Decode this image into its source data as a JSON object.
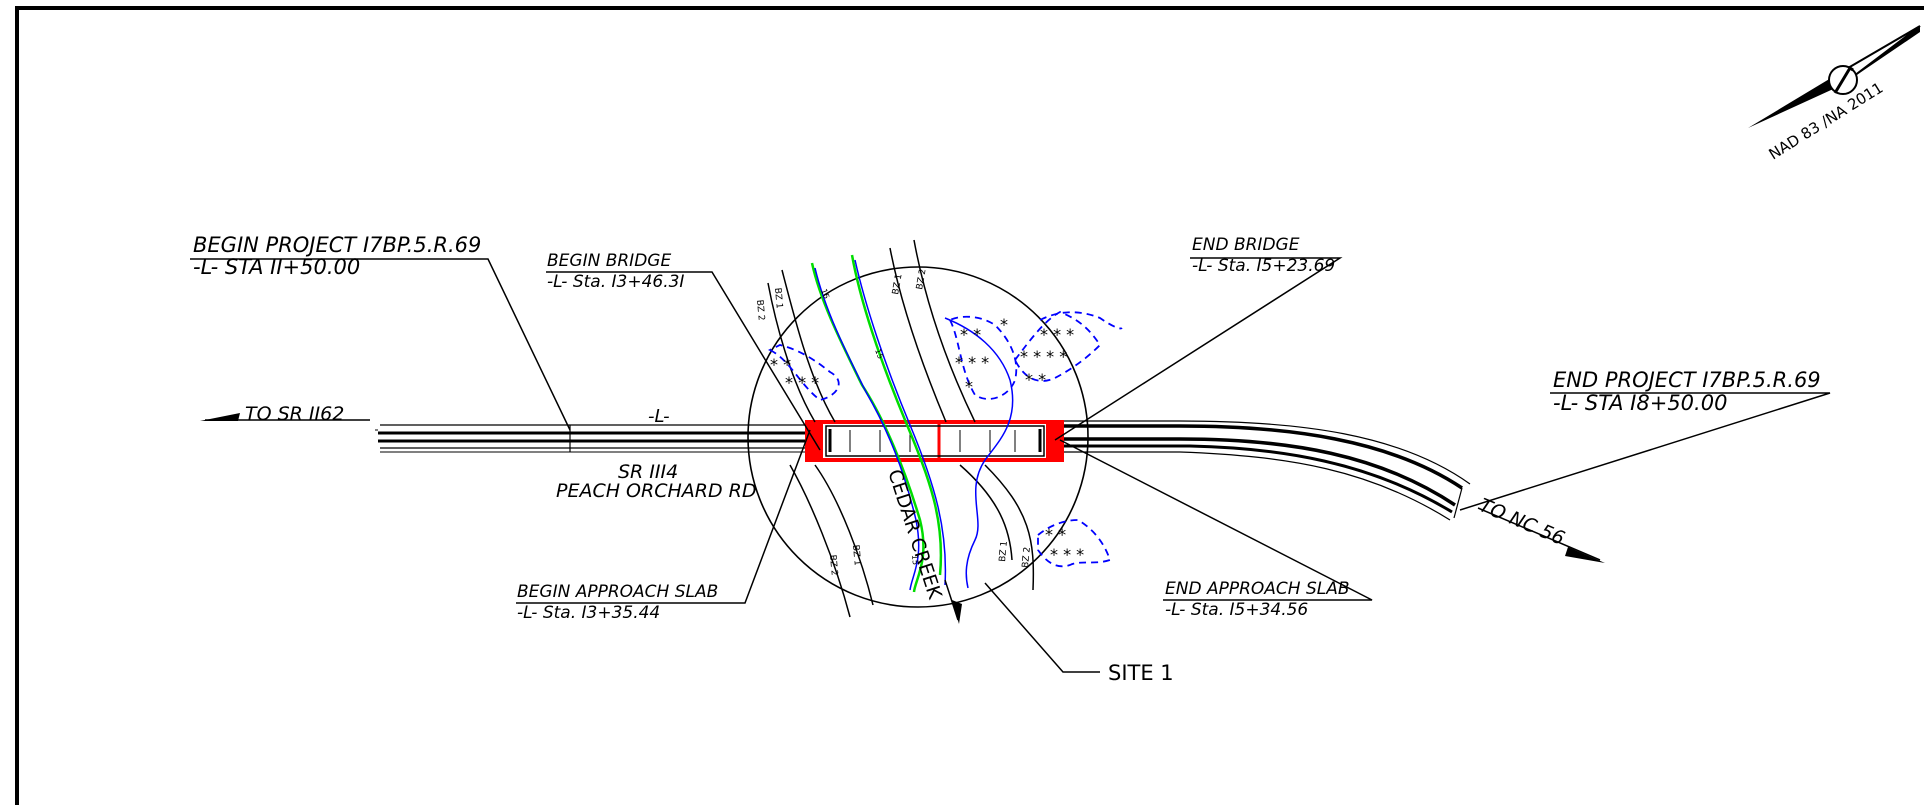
{
  "north_arrow": {
    "label": "NAD 83 /NA 2011"
  },
  "labels": {
    "begin_project": {
      "line1": "BEGIN PROJECT I7BP.5.R.69",
      "line2": "-L- STA II+50.00"
    },
    "begin_bridge": {
      "line1": "BEGIN BRIDGE",
      "line2": "-L- Sta. I3+46.3I"
    },
    "end_bridge": {
      "line1": "END BRIDGE",
      "line2": "-L- Sta. I5+23.69"
    },
    "end_project": {
      "line1": "END PROJECT I7BP.5.R.69",
      "line2": "-L- STA I8+50.00"
    },
    "begin_approach_slab": {
      "line1": "BEGIN APPROACH SLAB",
      "line2": "-L- Sta. I3+35.44"
    },
    "end_approach_slab": {
      "line1": "END APPROACH SLAB",
      "line2": "-L- Sta. I5+34.56"
    },
    "to_sr": "TO SR II62",
    "to_nc": "TO NC 56",
    "alignment": "-L-",
    "road_number": "SR III4",
    "road_name": "PEACH ORCHARD RD",
    "creek": "CEDAR CREEK",
    "site": "SITE 1"
  },
  "contour_labels": [
    "15",
    "15",
    "15"
  ],
  "buffer_zone_labels": [
    "BZ 2",
    "BZ 1",
    "BZ 1",
    "BZ 2",
    "BZ 2",
    "BZ 1",
    "BZ 1",
    "BZ 2"
  ],
  "colors": {
    "linework": "#000000",
    "bridge": "#ff0000",
    "wetland": "#0000ff",
    "stream": "#00dd00"
  }
}
